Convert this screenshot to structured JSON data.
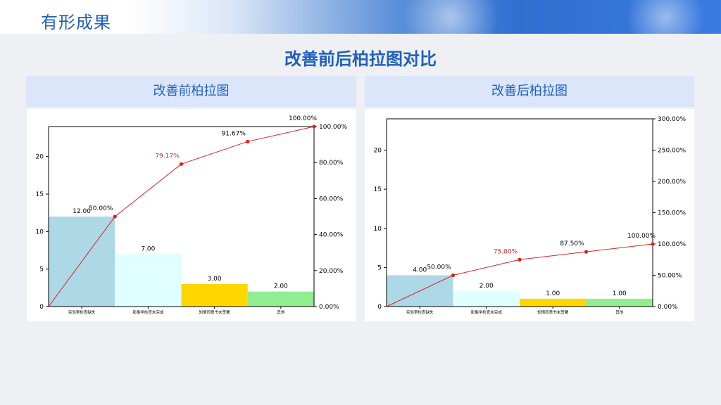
{
  "page": {
    "heading": "有形成果",
    "title": "改善前后柏拉图对比"
  },
  "panels": [
    {
      "header": "改善前柏拉图"
    },
    {
      "header": "改善后柏拉图"
    }
  ],
  "colors": {
    "bars": [
      "#add8e6",
      "#e0ffff",
      "#ffd700",
      "#90ee90"
    ],
    "line": "#e02020",
    "accent": "#1f5fbf"
  },
  "chart_data": [
    {
      "type": "bar",
      "title": "改善前柏拉图",
      "categories": [
        "实验室检查缺失",
        "影像学检查未完成",
        "知情同意书未签署",
        "其他"
      ],
      "values": [
        12,
        7,
        3,
        2
      ],
      "value_labels": [
        "12.00",
        "7.00",
        "3.00",
        "2.00"
      ],
      "cumulative_percent": [
        0,
        50,
        79.17,
        91.67,
        100
      ],
      "cumulative_labels": [
        "",
        "50.00%",
        "79.17%",
        "91.67%",
        "100.00%"
      ],
      "highlight_label_index": 2,
      "ylim": [
        0,
        24
      ],
      "yticks": [
        0,
        5,
        10,
        15,
        20
      ],
      "y2lim": [
        0,
        100
      ],
      "y2ticks": [
        0,
        20,
        40,
        60,
        80,
        100
      ],
      "y2ticklabels": [
        "0.00%",
        "20.00%",
        "40.00%",
        "60.00%",
        "80.00%",
        "100.00%"
      ],
      "xlabel": "",
      "ylabel": ""
    },
    {
      "type": "bar",
      "title": "改善后柏拉图",
      "categories": [
        "实验室检查缺失",
        "影像学检查未完成",
        "知情同意书未签署",
        "其他"
      ],
      "values": [
        4,
        2,
        1,
        1
      ],
      "value_labels": [
        "4.00",
        "2.00",
        "1.00",
        "1.00"
      ],
      "cumulative_percent": [
        0,
        50,
        75,
        87.5,
        100
      ],
      "cumulative_labels": [
        "",
        "50.00%",
        "75.00%",
        "87.50%",
        "100.00%"
      ],
      "highlight_label_index": 2,
      "ylim": [
        0,
        24
      ],
      "yticks": [
        0,
        5,
        10,
        15,
        20
      ],
      "y2lim": [
        0,
        300
      ],
      "y2ticks": [
        0,
        50,
        100,
        150,
        200,
        250,
        300
      ],
      "y2ticklabels": [
        "0.00%",
        "50.00%",
        "100.00%",
        "150.00%",
        "200.00%",
        "250.00%",
        "300.00%"
      ],
      "xlabel": "",
      "ylabel": ""
    }
  ]
}
